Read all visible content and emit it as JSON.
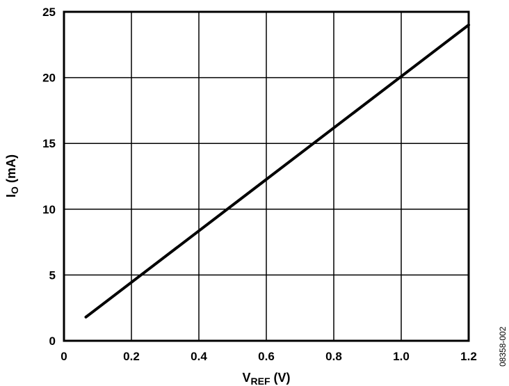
{
  "chart_data": {
    "type": "line",
    "title": "",
    "xlabel": {
      "main": "V",
      "sub": "REF",
      "unit": " (V)"
    },
    "ylabel": {
      "main": "I",
      "sub": "O",
      "unit": " (mA)"
    },
    "xlim": [
      0,
      1.2
    ],
    "ylim": [
      0,
      25
    ],
    "grid": true,
    "x_ticks": [
      "0",
      "0.2",
      "0.4",
      "0.6",
      "0.8",
      "1.0",
      "1.2"
    ],
    "y_ticks": [
      "0",
      "5",
      "10",
      "15",
      "20",
      "25"
    ],
    "x_tick_values": [
      0,
      0.2,
      0.4,
      0.6,
      0.8,
      1.0,
      1.2
    ],
    "y_tick_values": [
      0,
      5,
      10,
      15,
      20,
      25
    ],
    "series": [
      {
        "color": "#000000",
        "x": [
          0.065,
          1.2
        ],
        "y": [
          1.8,
          24.0
        ]
      }
    ]
  },
  "figure_id": "08358-002"
}
